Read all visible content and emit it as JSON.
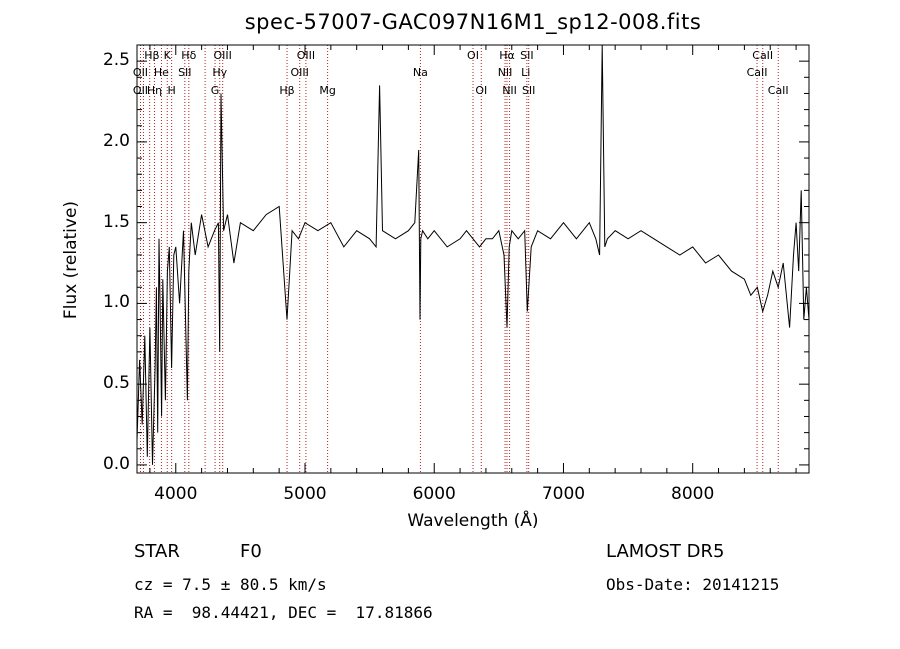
{
  "chart_data": {
    "type": "line",
    "title": "spec-57007-GAC097N16M1_sp12-008.fits",
    "xlabel": "Wavelength (Å)",
    "ylabel": "Flux (relative)",
    "xlim": [
      3700,
      8900
    ],
    "ylim": [
      -0.05,
      2.6
    ],
    "xticks": [
      4000,
      5000,
      6000,
      7000,
      8000
    ],
    "yticks": [
      0.0,
      0.5,
      1.0,
      1.5,
      2.0,
      2.5
    ],
    "xtick_labels": [
      "4000",
      "5000",
      "6000",
      "7000",
      "8000"
    ],
    "ytick_labels": [
      "0.0",
      "0.5",
      "1.0",
      "1.5",
      "2.0",
      "2.5"
    ],
    "grid": false,
    "series": [
      {
        "color": "#000000",
        "x": [
          3700,
          3720,
          3740,
          3760,
          3780,
          3800,
          3820,
          3840,
          3850,
          3860,
          3870,
          3880,
          3890,
          3900,
          3920,
          3935,
          3950,
          3968,
          3985,
          4000,
          4030,
          4060,
          4090,
          4101,
          4120,
          4150,
          4200,
          4250,
          4300,
          4330,
          4340,
          4350,
          4370,
          4400,
          4450,
          4500,
          4600,
          4700,
          4800,
          4861,
          4900,
          4950,
          5000,
          5100,
          5200,
          5300,
          5400,
          5500,
          5550,
          5577,
          5600,
          5700,
          5800,
          5850,
          5880,
          5890,
          5896,
          5910,
          5950,
          6000,
          6100,
          6200,
          6250,
          6300,
          6350,
          6400,
          6450,
          6500,
          6540,
          6563,
          6580,
          6600,
          6650,
          6700,
          6720,
          6750,
          6800,
          6900,
          7000,
          7100,
          7200,
          7250,
          7280,
          7300,
          7320,
          7340,
          7400,
          7500,
          7600,
          7700,
          7800,
          7900,
          8000,
          8100,
          8200,
          8300,
          8400,
          8450,
          8500,
          8542,
          8580,
          8620,
          8662,
          8700,
          8750,
          8780,
          8800,
          8820,
          8840,
          8860,
          8880,
          8900
        ],
        "y": [
          0.15,
          0.65,
          0.25,
          0.8,
          0.05,
          0.85,
          0.0,
          0.6,
          1.1,
          0.2,
          1.4,
          0.9,
          0.3,
          1.15,
          0.4,
          1.2,
          1.35,
          0.6,
          1.3,
          1.35,
          1.0,
          1.45,
          0.4,
          1.2,
          1.5,
          1.3,
          1.55,
          1.35,
          1.45,
          1.5,
          0.7,
          2.3,
          1.45,
          1.55,
          1.25,
          1.5,
          1.45,
          1.55,
          1.6,
          0.9,
          1.45,
          1.4,
          1.5,
          1.45,
          1.5,
          1.35,
          1.45,
          1.4,
          1.35,
          2.35,
          1.45,
          1.4,
          1.45,
          1.5,
          1.95,
          0.9,
          1.4,
          1.45,
          1.4,
          1.45,
          1.35,
          1.4,
          1.45,
          1.4,
          1.35,
          1.4,
          1.4,
          1.45,
          1.3,
          0.85,
          1.35,
          1.45,
          1.4,
          1.45,
          0.95,
          1.35,
          1.45,
          1.4,
          1.5,
          1.4,
          1.5,
          1.4,
          1.3,
          2.6,
          1.35,
          1.4,
          1.45,
          1.4,
          1.45,
          1.4,
          1.35,
          1.3,
          1.35,
          1.25,
          1.3,
          1.2,
          1.15,
          1.05,
          1.1,
          0.95,
          1.05,
          1.2,
          1.1,
          1.25,
          0.85,
          1.3,
          1.5,
          1.2,
          1.7,
          0.9,
          1.1,
          0.9
        ]
      }
    ],
    "lines": {
      "wavelengths": [
        3727,
        3750,
        3798,
        3835,
        3889,
        3934,
        3968,
        4070,
        4101,
        4227,
        4304,
        4340,
        4363,
        4861,
        4959,
        5007,
        5175,
        5893,
        6300,
        6364,
        6548,
        6563,
        6583,
        6717,
        6731,
        8498,
        8542,
        8662
      ],
      "labels": [
        {
          "text": "Hβ",
          "w": 3815,
          "row": 1
        },
        {
          "text": "K",
          "w": 3934,
          "row": 1
        },
        {
          "text": "Hδ",
          "w": 4101,
          "row": 1
        },
        {
          "text": "OIII",
          "w": 4363,
          "row": 1
        },
        {
          "text": "OIII",
          "w": 5007,
          "row": 1
        },
        {
          "text": "OI",
          "w": 6300,
          "row": 1
        },
        {
          "text": "Hα",
          "w": 6563,
          "row": 1
        },
        {
          "text": "SII",
          "w": 6717,
          "row": 1
        },
        {
          "text": "CaII",
          "w": 8542,
          "row": 1
        },
        {
          "text": "OII",
          "w": 3727,
          "row": 2
        },
        {
          "text": "He",
          "w": 3889,
          "row": 2
        },
        {
          "text": "SII",
          "w": 4070,
          "row": 2
        },
        {
          "text": "Hγ",
          "w": 4340,
          "row": 2
        },
        {
          "text": "OIII",
          "w": 4959,
          "row": 2
        },
        {
          "text": "Na",
          "w": 5893,
          "row": 2
        },
        {
          "text": "NII",
          "w": 6548,
          "row": 2
        },
        {
          "text": "Li",
          "w": 6708,
          "row": 2
        },
        {
          "text": "CaII",
          "w": 8498,
          "row": 2
        },
        {
          "text": "OII",
          "w": 3727,
          "row": 3
        },
        {
          "text": "Hη",
          "w": 3835,
          "row": 3
        },
        {
          "text": "H",
          "w": 3968,
          "row": 3
        },
        {
          "text": "G",
          "w": 4304,
          "row": 3
        },
        {
          "text": "Hβ",
          "w": 4861,
          "row": 3
        },
        {
          "text": "Mg",
          "w": 5175,
          "row": 3
        },
        {
          "text": "OI",
          "w": 6364,
          "row": 3
        },
        {
          "text": "NII",
          "w": 6583,
          "row": 3
        },
        {
          "text": "SII",
          "w": 6731,
          "row": 3
        },
        {
          "text": "CaII",
          "w": 8662,
          "row": 3
        }
      ]
    }
  },
  "info": {
    "class": "STAR",
    "subclass": "F0",
    "survey": "LAMOST DR5",
    "cz": "cz = 7.5 ± 80.5 km/s",
    "obs_date": "Obs-Date: 20141215",
    "radec": "RA =  98.44421, DEC =  17.81866"
  }
}
